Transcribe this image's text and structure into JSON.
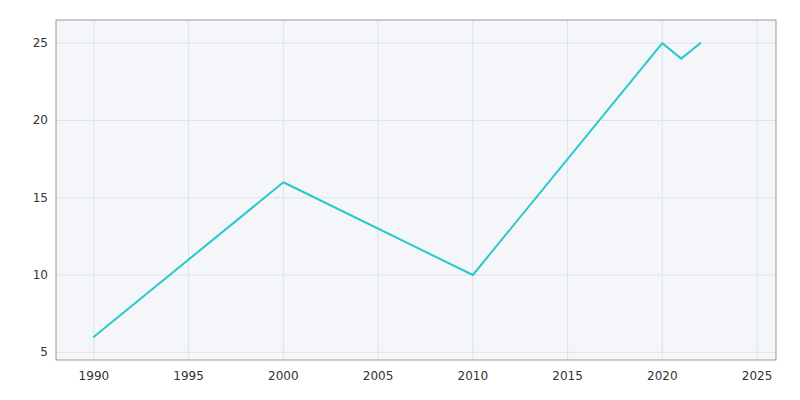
{
  "chart_data": {
    "type": "line",
    "x": [
      1990,
      2000,
      2010,
      2020,
      2021,
      2022
    ],
    "values": [
      6,
      16,
      10,
      25,
      24,
      25
    ],
    "color": "#2ac9c9",
    "xlim": [
      1988,
      2026
    ],
    "ylim": [
      4.5,
      26.5
    ],
    "xticks": [
      1990,
      1995,
      2000,
      2005,
      2010,
      2015,
      2020,
      2025
    ],
    "yticks": [
      5,
      10,
      15,
      20,
      25
    ],
    "grid": true
  }
}
